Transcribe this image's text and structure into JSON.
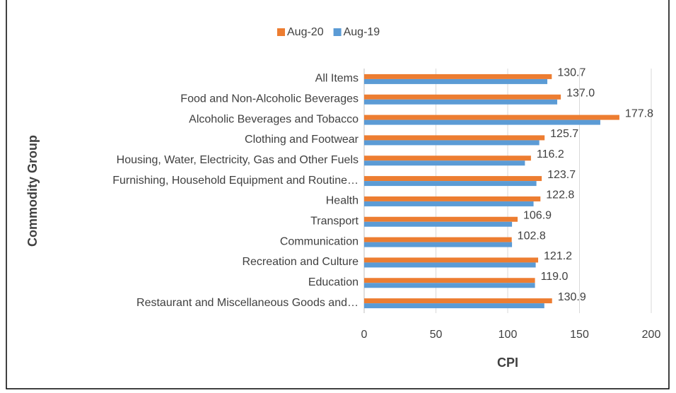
{
  "chart_data": {
    "type": "hbar",
    "categories": [
      "All Items",
      "Food and Non-Alcoholic Beverages",
      "Alcoholic Beverages and Tobacco",
      "Clothing and Footwear",
      "Housing, Water, Electricity, Gas and Other Fuels",
      "Furnishing, Household Equipment and Routine…",
      "Health",
      "Transport",
      "Communication",
      "Recreation and Culture",
      "Education",
      "Restaurant and Miscellaneous Goods and…"
    ],
    "series": [
      {
        "name": "Aug-20",
        "color": "#ed7d31",
        "values": [
          130.7,
          137.0,
          177.8,
          125.7,
          116.2,
          123.7,
          122.8,
          106.9,
          102.8,
          121.2,
          119.0,
          130.9
        ],
        "value_labels": [
          "130.7",
          "137.0",
          "177.8",
          "125.7",
          "116.2",
          "123.7",
          "122.8",
          "106.9",
          "102.8",
          "121.2",
          "119.0",
          "130.9"
        ]
      },
      {
        "name": "Aug-19",
        "color": "#5b9bd5",
        "values": [
          127.6,
          134.5,
          164.5,
          122,
          112,
          120,
          118,
          103,
          103,
          119.5,
          119,
          125.5
        ]
      }
    ],
    "xlabel": "CPI",
    "ylabel": "Commodity Group",
    "xlim": [
      0,
      200
    ],
    "xticks": [
      0,
      50,
      100,
      150,
      200
    ],
    "grid": true
  }
}
